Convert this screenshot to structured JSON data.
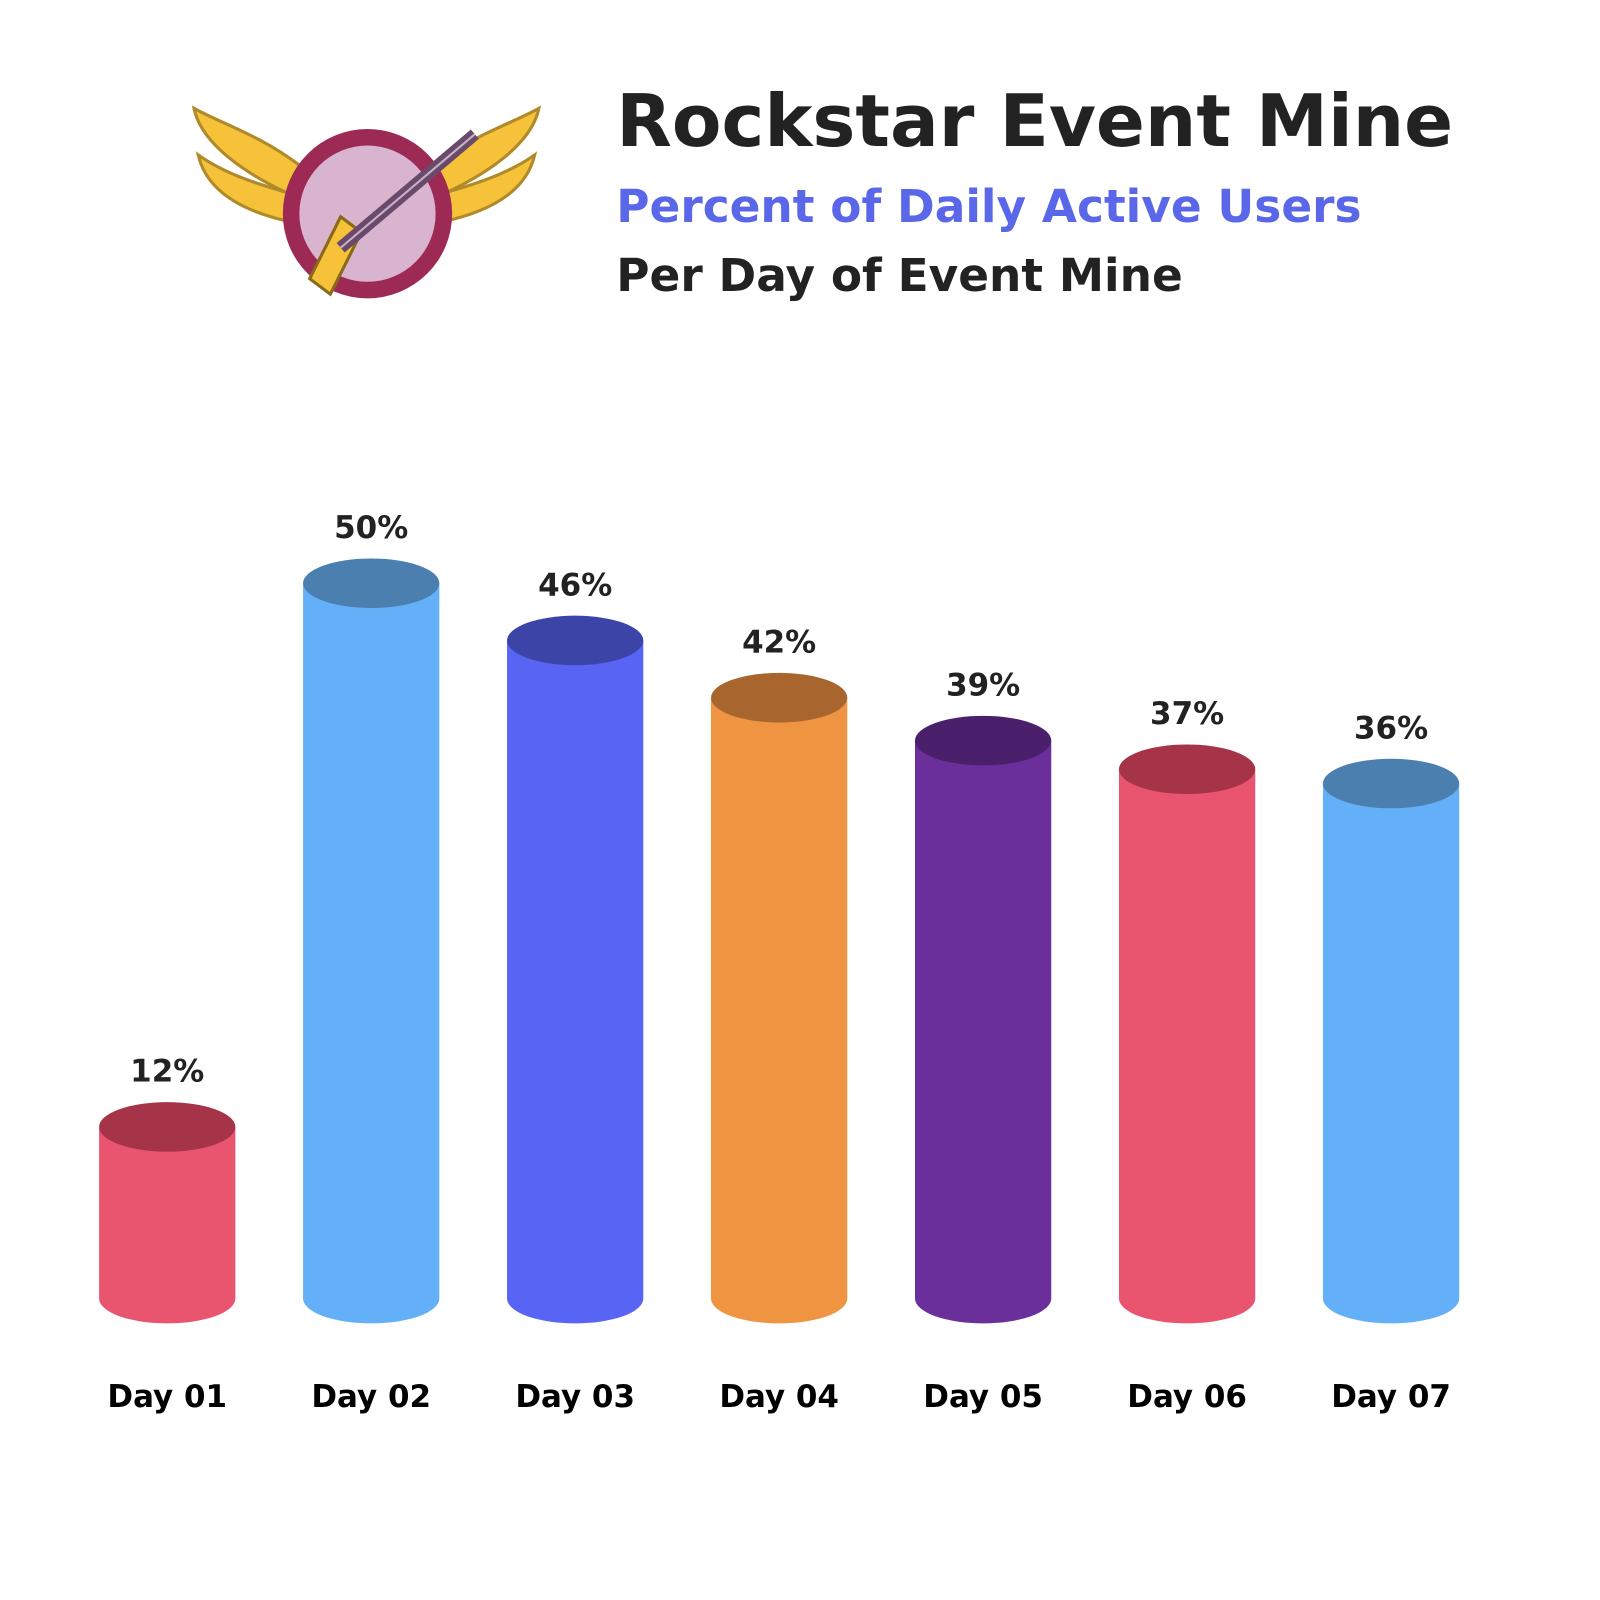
{
  "chart_data": {
    "type": "cylinder",
    "title": "Rockstar Event Mine",
    "subtitle": "Percent of Daily Active Users",
    "subtitle2": "Per Day of Event Mine",
    "subtitle_color": "#5a67e8",
    "categories": [
      "Day 01",
      "Day 02",
      "Day 03",
      "Day 04",
      "Day 05",
      "Day 06",
      "Day 07"
    ],
    "values": [
      12,
      50,
      46,
      42,
      39,
      37,
      36
    ],
    "value_labels": [
      "12%",
      "50%",
      "46%",
      "42%",
      "39%",
      "37%",
      "36%"
    ],
    "colors": [
      "#e9546f",
      "#64b0f8",
      "#5864f3",
      "#ef9440",
      "#6b2f9c",
      "#e9546f",
      "#64b0f8"
    ],
    "top_colors": [
      "#a63449",
      "#4a7fb0",
      "#3c44a8",
      "#a8662e",
      "#4a1f6c",
      "#a63449",
      "#4a7fb0"
    ]
  }
}
